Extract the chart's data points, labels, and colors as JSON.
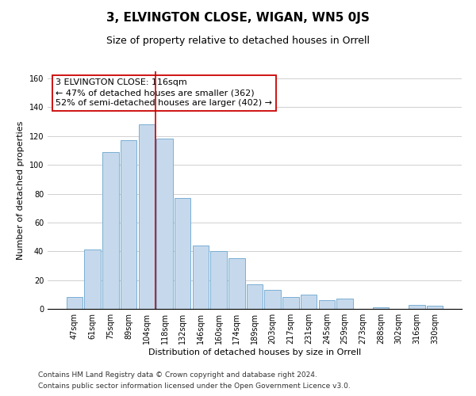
{
  "title": "3, ELVINGTON CLOSE, WIGAN, WN5 0JS",
  "subtitle": "Size of property relative to detached houses in Orrell",
  "xlabel": "Distribution of detached houses by size in Orrell",
  "ylabel": "Number of detached properties",
  "bar_labels": [
    "47sqm",
    "61sqm",
    "75sqm",
    "89sqm",
    "104sqm",
    "118sqm",
    "132sqm",
    "146sqm",
    "160sqm",
    "174sqm",
    "189sqm",
    "203sqm",
    "217sqm",
    "231sqm",
    "245sqm",
    "259sqm",
    "273sqm",
    "288sqm",
    "302sqm",
    "316sqm",
    "330sqm"
  ],
  "bar_values": [
    8,
    41,
    109,
    117,
    128,
    118,
    77,
    44,
    40,
    35,
    17,
    13,
    8,
    10,
    6,
    7,
    0,
    1,
    0,
    3,
    2
  ],
  "bar_color": "#c6d9ec",
  "bar_edge_color": "#7aafd4",
  "vline_color": "#cc0000",
  "vline_x": 4.5,
  "ylim": [
    0,
    165
  ],
  "yticks": [
    0,
    20,
    40,
    60,
    80,
    100,
    120,
    140,
    160
  ],
  "annotation_text": "3 ELVINGTON CLOSE: 116sqm\n← 47% of detached houses are smaller (362)\n52% of semi-detached houses are larger (402) →",
  "annotation_box_color": "#ffffff",
  "annotation_box_edge": "#cc0000",
  "footer1": "Contains HM Land Registry data © Crown copyright and database right 2024.",
  "footer2": "Contains public sector information licensed under the Open Government Licence v3.0.",
  "title_fontsize": 11,
  "subtitle_fontsize": 9,
  "ylabel_fontsize": 8,
  "xlabel_fontsize": 8,
  "annotation_fontsize": 8,
  "footer_fontsize": 6.5,
  "tick_fontsize": 7
}
